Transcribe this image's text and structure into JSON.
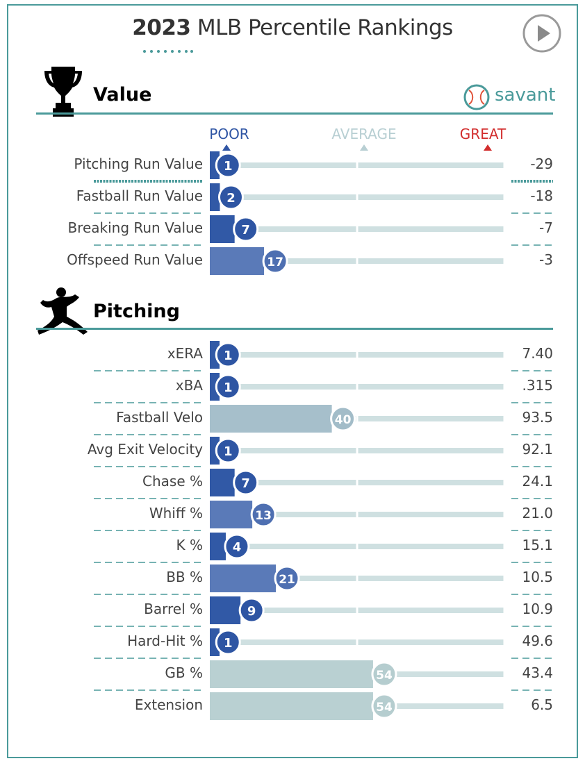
{
  "title": {
    "year": "2023",
    "rest": "MLB Percentile Rankings"
  },
  "brand": {
    "name": "savant"
  },
  "legend": {
    "poor": "POOR",
    "average": "AVERAGE",
    "great": "GREAT"
  },
  "colors": {
    "accent": "#4a9a9a",
    "poor": "#2f55a4",
    "great": "#d22d2d",
    "average_gray": "#b8cfd3",
    "track": "#cfe0e1"
  },
  "icons": {
    "value_section": "trophy-icon",
    "pitching_section": "pitcher-icon",
    "play": "play-button-icon",
    "brand": "baseball-icon"
  },
  "chart_data": {
    "type": "bar",
    "xlim": [
      0,
      100
    ],
    "sections": [
      {
        "name": "Value",
        "metrics": [
          {
            "label": "Pitching Run Value",
            "percentile": 1,
            "value": "-29"
          },
          {
            "label": "Fastball Run Value",
            "percentile": 2,
            "value": "-18"
          },
          {
            "label": "Breaking Run Value",
            "percentile": 7,
            "value": "-7"
          },
          {
            "label": "Offspeed Run Value",
            "percentile": 17,
            "value": "-3"
          }
        ]
      },
      {
        "name": "Pitching",
        "metrics": [
          {
            "label": "xERA",
            "percentile": 1,
            "value": "7.40"
          },
          {
            "label": "xBA",
            "percentile": 1,
            "value": ".315"
          },
          {
            "label": "Fastball Velo",
            "percentile": 40,
            "value": "93.5"
          },
          {
            "label": "Avg Exit Velocity",
            "percentile": 1,
            "value": "92.1"
          },
          {
            "label": "Chase %",
            "percentile": 7,
            "value": "24.1"
          },
          {
            "label": "Whiff %",
            "percentile": 13,
            "value": "21.0"
          },
          {
            "label": "K %",
            "percentile": 4,
            "value": "15.1"
          },
          {
            "label": "BB %",
            "percentile": 21,
            "value": "10.5"
          },
          {
            "label": "Barrel %",
            "percentile": 9,
            "value": "10.9"
          },
          {
            "label": "Hard-Hit %",
            "percentile": 1,
            "value": "49.6"
          },
          {
            "label": "GB %",
            "percentile": 54,
            "value": "43.4"
          },
          {
            "label": "Extension",
            "percentile": 54,
            "value": "6.5"
          }
        ]
      }
    ]
  }
}
